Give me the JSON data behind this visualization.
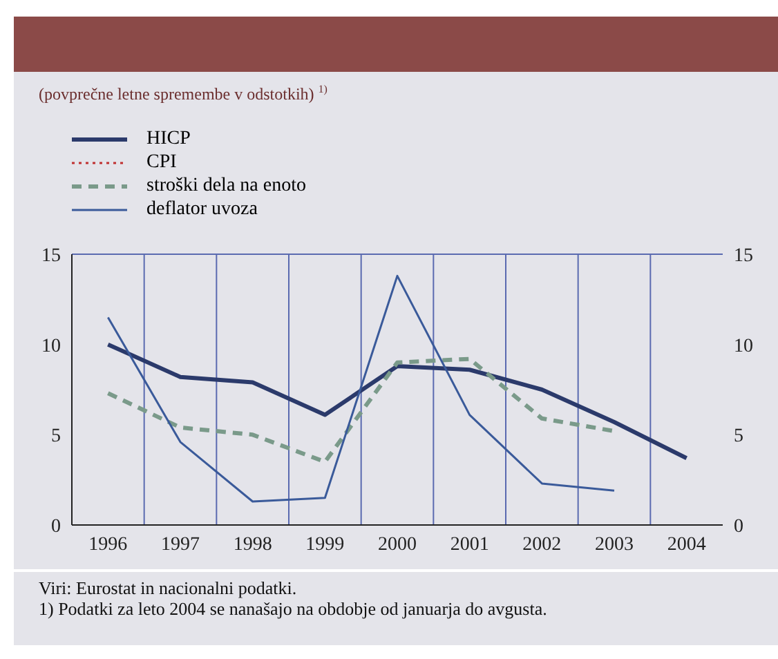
{
  "chart_data": {
    "type": "line",
    "subtitle": "(povprečne letne spremembe v odstotkih) $^{1)}$",
    "categories": [
      "1996",
      "1997",
      "1998",
      "1999",
      "2000",
      "2001",
      "2002",
      "2003",
      "2004"
    ],
    "series": [
      {
        "name": "HICP",
        "color": "#2b3a6b",
        "line_style": "solid",
        "values": [
          10,
          8.2,
          7.9,
          6.1,
          8.8,
          8.6,
          7.5,
          5.7,
          3.7
        ]
      },
      {
        "name": "CPI",
        "color": "#c03030",
        "line_style": "dotted",
        "values": [
          null,
          null,
          null,
          null,
          null,
          null,
          null,
          null,
          null
        ]
      },
      {
        "name": "stroški dela na enoto",
        "color": "#7a9a8a",
        "line_style": "dashed",
        "values": [
          7.3,
          5.4,
          5.0,
          3.5,
          9.0,
          9.2,
          5.9,
          5.2,
          null
        ]
      },
      {
        "name": "deflator uvoza",
        "color": "#3a5a9a",
        "line_style": "solid",
        "values": [
          11.5,
          4.6,
          1.3,
          1.5,
          13.8,
          6.1,
          2.3,
          1.9,
          null
        ]
      }
    ],
    "ylim": [
      0,
      15
    ],
    "yticks": [
      0,
      5,
      10,
      15
    ],
    "y2lim": [
      0,
      15
    ],
    "y2ticks": [
      0,
      5,
      10,
      15
    ],
    "grid": true,
    "legend": "top left",
    "marker": "none",
    "annotations": [
      "Viri: Eurostat in nacionalni podatki.",
      "1) Podatki za leto 2004 se nanašajo na obdobje od januarja do avgusta."
    ]
  }
}
